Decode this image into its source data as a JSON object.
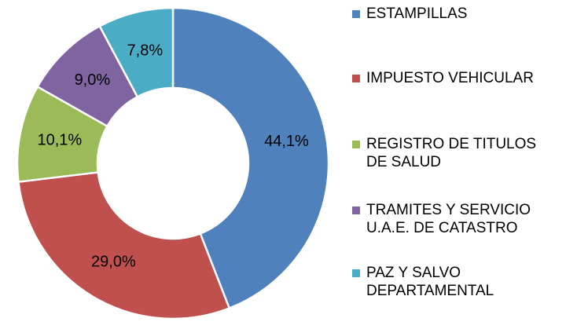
{
  "chart_data": {
    "type": "donut",
    "categories": [
      "ESTAMPILLAS",
      "IMPUESTO VEHICULAR",
      "REGISTRO DE TITULOS DE SALUD",
      "TRAMITES Y SERVICIO U.A.E. DE CATASTRO",
      "PAZ Y SALVO DEPARTAMENTAL"
    ],
    "values": [
      44.1,
      29.0,
      10.1,
      9.0,
      7.8
    ],
    "value_labels": [
      "44,1%",
      "29,0%",
      "10,1%",
      "9,0%",
      "7,8%"
    ],
    "colors": [
      "#4f81bd",
      "#c0504d",
      "#9bbb59",
      "#8064a2",
      "#4bacc6"
    ],
    "legend": "right"
  }
}
